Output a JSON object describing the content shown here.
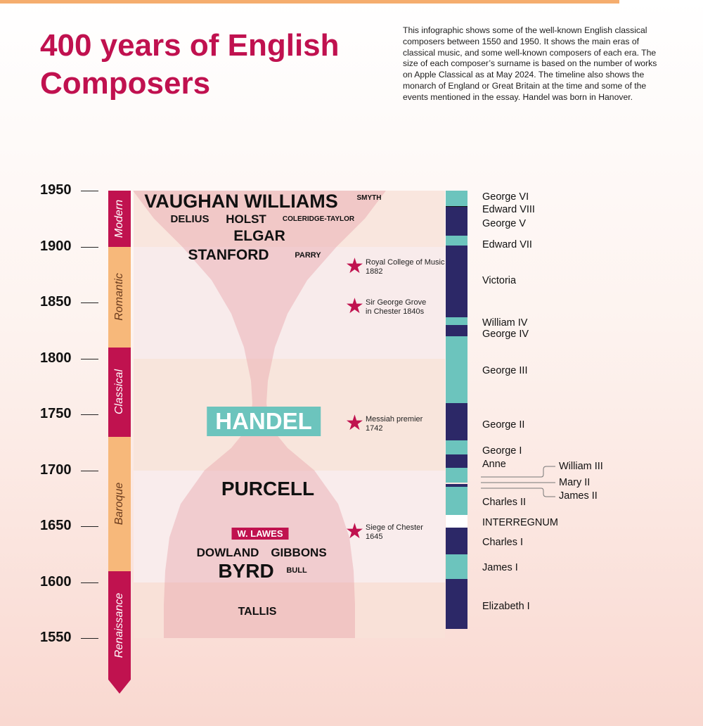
{
  "header": {
    "title": "400 years of English Composers",
    "description": "This infographic shows some of the well-known English classical composers between 1550 and 1950. It shows the main eras of classical music, and some well-known composers of each era. The size of each composer’s surname  is based on the number of works on Apple Classical as at May 2024. The timeline also shows the monarch of England or Great Britain at the time and some of the events mentioned in the essay. Handel was born in Hanover."
  },
  "timeline": {
    "years": [
      "1950",
      "1900",
      "1850",
      "1800",
      "1750",
      "1700",
      "1650",
      "1600",
      "1550"
    ]
  },
  "eras": [
    {
      "name": "Modern",
      "from": 1900,
      "to": 1950,
      "color": "#c0124f"
    },
    {
      "name": "Romantic",
      "from": 1810,
      "to": 1900,
      "color": "#f7b87a"
    },
    {
      "name": "Classical",
      "from": 1730,
      "to": 1810,
      "color": "#c0124f"
    },
    {
      "name": "Baroque",
      "from": 1610,
      "to": 1730,
      "color": "#f7b87a"
    },
    {
      "name": "Renaissance",
      "from": 1550,
      "to": 1610,
      "color": "#c0124f"
    }
  ],
  "composers": [
    {
      "name": "VAUGHAN WILLIAMS",
      "year": 1940,
      "size": 27
    },
    {
      "name": "SMYTH",
      "year": 1943,
      "size": 10
    },
    {
      "name": "DELIUS",
      "year": 1924,
      "size": 15
    },
    {
      "name": "HOLST",
      "year": 1924,
      "size": 17
    },
    {
      "name": "COLERIDGE-TAYLOR",
      "year": 1924,
      "size": 10
    },
    {
      "name": "ELGAR",
      "year": 1909,
      "size": 21
    },
    {
      "name": "STANFORD",
      "year": 1892,
      "size": 21
    },
    {
      "name": "PARRY",
      "year": 1892,
      "size": 11
    },
    {
      "name": "HANDEL",
      "year": 1741,
      "size": 33
    },
    {
      "name": "PURCELL",
      "year": 1683,
      "size": 28
    },
    {
      "name": "W. LAWES",
      "year": 1644,
      "size": 13
    },
    {
      "name": "DOWLAND",
      "year": 1626,
      "size": 17
    },
    {
      "name": "GIBBONS",
      "year": 1626,
      "size": 17
    },
    {
      "name": "BYRD",
      "year": 1609,
      "size": 28
    },
    {
      "name": "BULL",
      "year": 1610,
      "size": 11
    },
    {
      "name": "TALLIS",
      "year": 1573,
      "size": 16
    }
  ],
  "events": [
    {
      "label": "Royal College of Music",
      "detail": "1882",
      "year": 1882
    },
    {
      "label": "Sir George Grove",
      "detail": "in Chester 1840s",
      "year": 1846
    },
    {
      "label": "Messiah premier",
      "detail": "1742",
      "year": 1742
    },
    {
      "label": "Siege of Chester",
      "detail": "1645",
      "year": 1645
    }
  ],
  "monarchs": [
    {
      "name": "Elizabeth I",
      "from": 1558,
      "to": 1603
    },
    {
      "name": "James I",
      "from": 1603,
      "to": 1625
    },
    {
      "name": "Charles I",
      "from": 1625,
      "to": 1649
    },
    {
      "name": "INTERREGNUM",
      "from": 1649,
      "to": 1660
    },
    {
      "name": "Charles II",
      "from": 1660,
      "to": 1685
    },
    {
      "name": "James II",
      "from": 1685,
      "to": 1688
    },
    {
      "name": "William III",
      "from": 1689,
      "to": 1702
    },
    {
      "name": "Mary II",
      "from": 1689,
      "to": 1694
    },
    {
      "name": "Anne",
      "from": 1702,
      "to": 1714
    },
    {
      "name": "George I",
      "from": 1714,
      "to": 1727
    },
    {
      "name": "George II",
      "from": 1727,
      "to": 1760
    },
    {
      "name": "George III",
      "from": 1760,
      "to": 1820
    },
    {
      "name": "George IV",
      "from": 1820,
      "to": 1830
    },
    {
      "name": "William IV",
      "from": 1830,
      "to": 1837
    },
    {
      "name": "Victoria",
      "from": 1837,
      "to": 1901
    },
    {
      "name": "Edward VII",
      "from": 1901,
      "to": 1910
    },
    {
      "name": "George V",
      "from": 1910,
      "to": 1936
    },
    {
      "name": "Edward VIII",
      "from": 1936,
      "to": 1936
    },
    {
      "name": "George VI",
      "from": 1936,
      "to": 1952
    }
  ],
  "colors": {
    "accent": "#c0114f",
    "rule": "#f5ad6e",
    "reign_light": "#6cc4bd",
    "reign_dark": "#2c2867",
    "handel_box": "#6cc4bd",
    "lawes_box": "#c0124f"
  }
}
